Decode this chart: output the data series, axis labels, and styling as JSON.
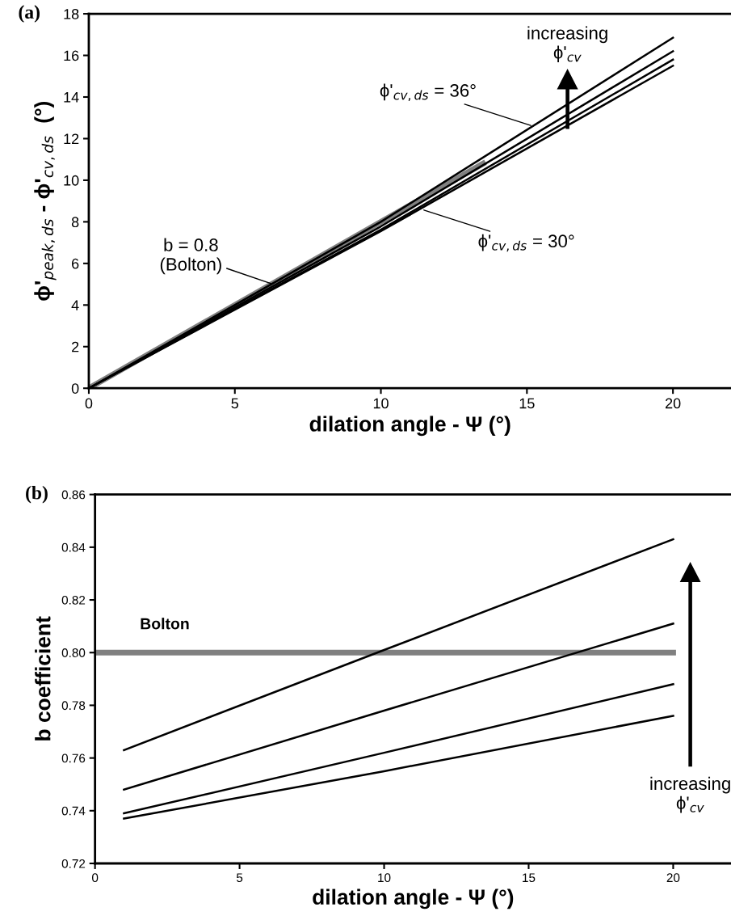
{
  "chart_data": [
    {
      "type": "line",
      "xlabel": "dilation angle - Ψ (°)",
      "ylabel": "ϕ'$_{peak,ds}$ - ϕ'$_{cv,ds}$  (°)",
      "xlim": [
        0,
        22
      ],
      "ylim": [
        0,
        18
      ],
      "xticks": [
        0,
        5,
        10,
        15,
        20
      ],
      "yticks": [
        0,
        2,
        4,
        6,
        8,
        10,
        12,
        14,
        16,
        18
      ],
      "grid": false,
      "marker": "none",
      "line_style": "solid",
      "series": [
        {
          "color": "#000000",
          "x": [
            0,
            10,
            20
          ],
          "values": [
            0,
            7.55,
            15.5
          ]
        },
        {
          "color": "#000000",
          "x": [
            0,
            10,
            20
          ],
          "values": [
            0,
            7.62,
            15.8
          ]
        },
        {
          "color": "#000000",
          "x": [
            0,
            10,
            20
          ],
          "values": [
            0,
            7.78,
            16.2
          ]
        },
        {
          "color": "#000000",
          "x": [
            0,
            10,
            20
          ],
          "values": [
            0,
            8.0,
            16.85
          ]
        },
        {
          "color": "#808080",
          "x": [
            0,
            13.5
          ],
          "values": [
            0,
            10.8
          ]
        }
      ],
      "annotations": [
        "(a)",
        "increasing\nϕ'$_{cv}$",
        {
          "text": "b = 0.8\n(Bolton)",
          "x": 6.3,
          "y": 5.0
        },
        {
          "text": "ϕ'$_{cv,ds}$ = 36°",
          "x": 15.2,
          "y": 12.6
        },
        {
          "text": "ϕ'$_{cv,ds}$ = 30°",
          "x": 11.4,
          "y": 8.6
        }
      ]
    },
    {
      "type": "line",
      "xlabel": "dilation angle - Ψ (°)",
      "ylabel": "b coefficient",
      "xlim": [
        0,
        22
      ],
      "ylim": [
        0.72,
        0.86
      ],
      "xticks": [
        0,
        5,
        10,
        15,
        20
      ],
      "yticks": [
        {
          "value": 0.72,
          "label": "0.72"
        },
        {
          "value": 0.74,
          "label": "0.74"
        },
        {
          "value": 0.76,
          "label": "0.76"
        },
        {
          "value": 0.78,
          "label": "0.78"
        },
        {
          "value": 0.8,
          "label": "0.80"
        },
        {
          "value": 0.82,
          "label": "0.82"
        },
        {
          "value": 0.84,
          "label": "0.84"
        },
        {
          "value": 0.86,
          "label": "0.86"
        }
      ],
      "grid": false,
      "marker": "none",
      "line_style": "solid",
      "series": [
        {
          "color": "#000000",
          "x": [
            1,
            10,
            20
          ],
          "values": [
            0.737,
            0.755,
            0.776
          ]
        },
        {
          "color": "#000000",
          "x": [
            1,
            10,
            20
          ],
          "values": [
            0.739,
            0.762,
            0.788
          ]
        },
        {
          "color": "#000000",
          "x": [
            1,
            10,
            20
          ],
          "values": [
            0.748,
            0.778,
            0.811
          ]
        },
        {
          "color": "#000000",
          "x": [
            1,
            10,
            20
          ],
          "values": [
            0.763,
            0.801,
            0.843
          ]
        },
        {
          "name": "Bolton",
          "color": "#808080",
          "x": [
            0,
            20
          ],
          "values": [
            0.8,
            0.8
          ]
        }
      ],
      "annotations": [
        "(b)",
        "increasing\nϕ'$_{cv}$"
      ]
    }
  ]
}
